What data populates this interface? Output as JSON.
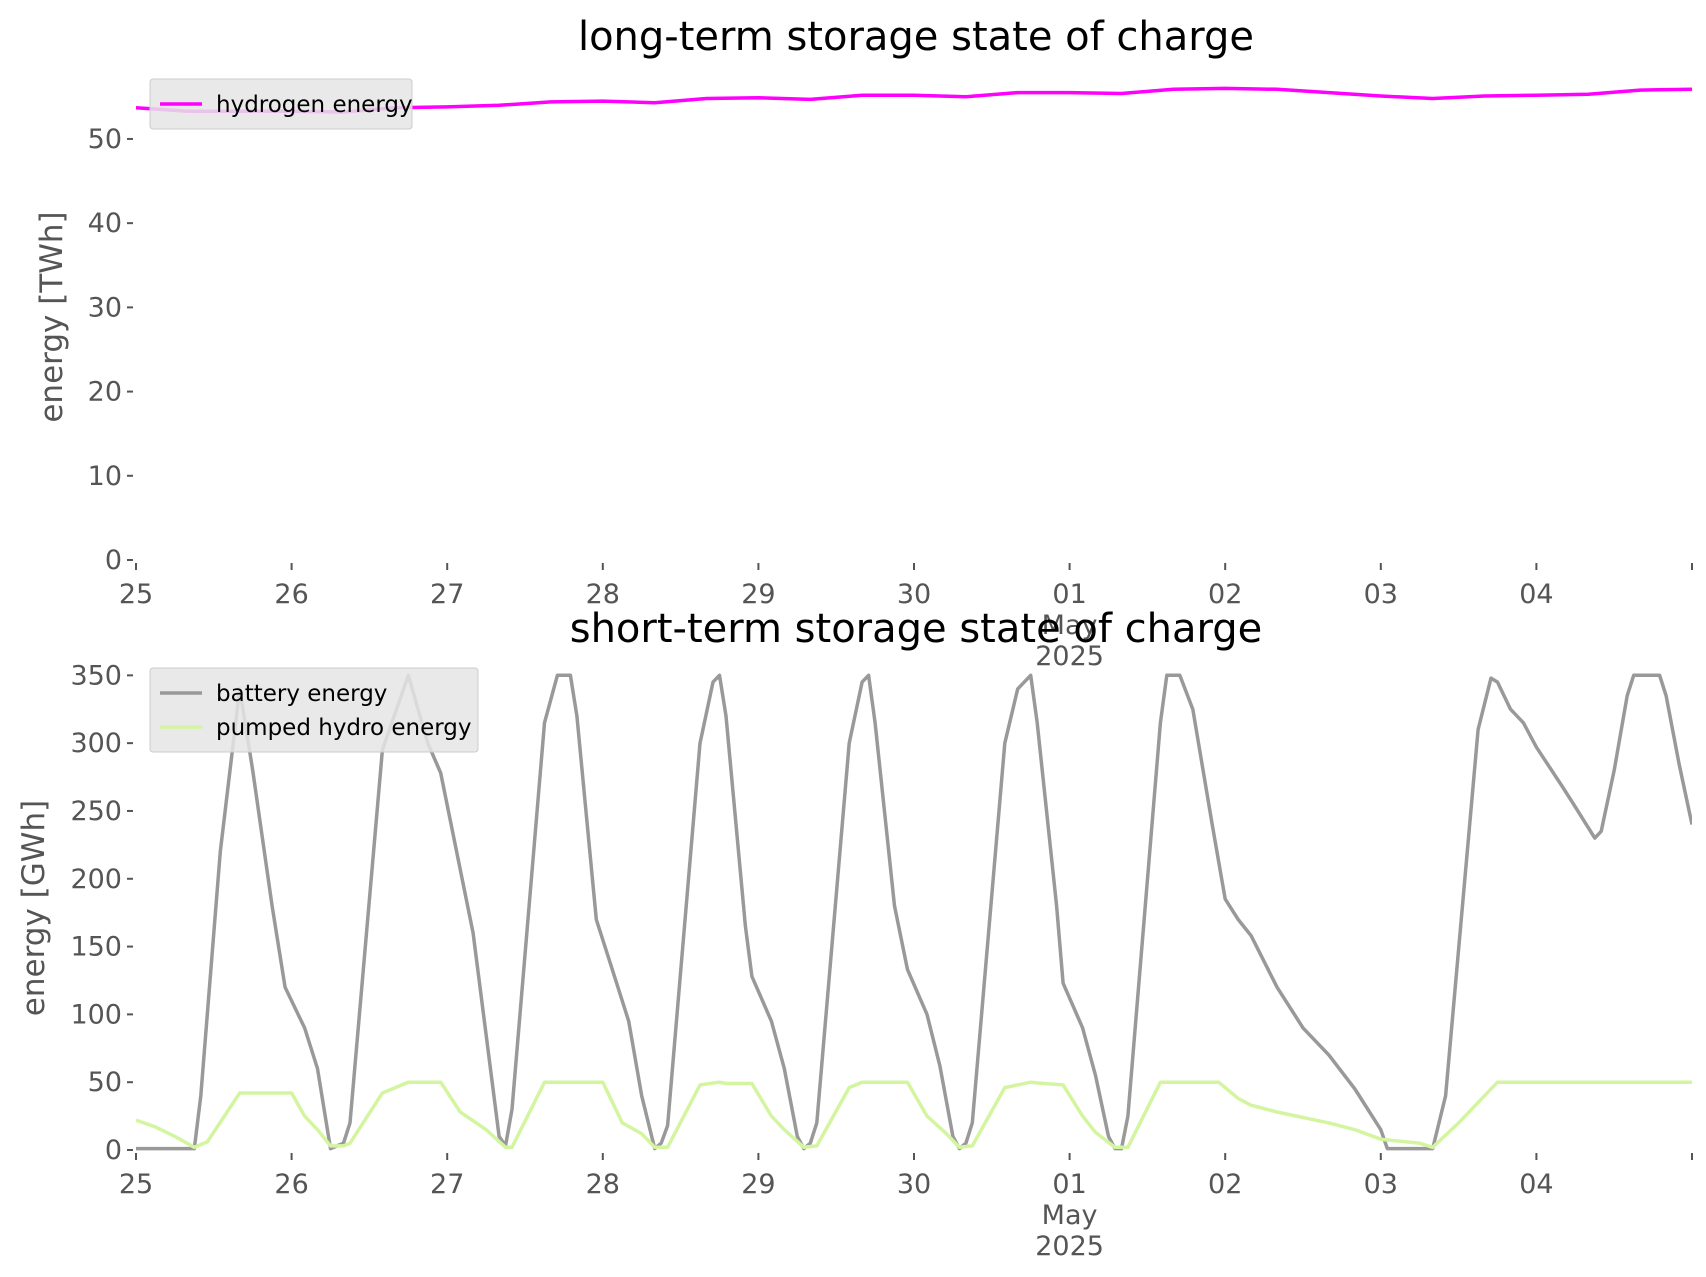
{
  "chart_data": [
    {
      "type": "line",
      "title": "long-term storage state of charge",
      "xlabel": "",
      "ylabel": "energy [TWh]",
      "ylim": [
        0,
        57
      ],
      "yticks": [
        0,
        10,
        20,
        30,
        40,
        50
      ],
      "xlim": [
        "2025-04-25",
        "2025-05-05"
      ],
      "xticks": [
        {
          "x": "2025-04-25",
          "label": "25"
        },
        {
          "x": "2025-04-26",
          "label": "26"
        },
        {
          "x": "2025-04-27",
          "label": "27"
        },
        {
          "x": "2025-04-28",
          "label": "28"
        },
        {
          "x": "2025-04-29",
          "label": "29"
        },
        {
          "x": "2025-04-30",
          "label": "30"
        },
        {
          "x": "2025-05-01",
          "label": "01\nMay\n2025"
        },
        {
          "x": "2025-05-02",
          "label": "02"
        },
        {
          "x": "2025-05-03",
          "label": "03"
        },
        {
          "x": "2025-05-04",
          "label": "04"
        }
      ],
      "grid": false,
      "legend": "top-left",
      "series": [
        {
          "name": "hydrogen energy",
          "color": "#ff00ff",
          "points": [
            [
              "2025-04-25 00:00",
              53.7
            ],
            [
              "2025-04-25 08:00",
              53.3
            ],
            [
              "2025-04-25 16:00",
              53.3
            ],
            [
              "2025-04-26 00:00",
              53.3
            ],
            [
              "2025-04-26 08:00",
              53.2
            ],
            [
              "2025-04-26 16:00",
              53.7
            ],
            [
              "2025-04-27 00:00",
              53.8
            ],
            [
              "2025-04-27 08:00",
              54.0
            ],
            [
              "2025-04-27 16:00",
              54.4
            ],
            [
              "2025-04-28 00:00",
              54.5
            ],
            [
              "2025-04-28 08:00",
              54.3
            ],
            [
              "2025-04-28 16:00",
              54.8
            ],
            [
              "2025-04-29 00:00",
              54.9
            ],
            [
              "2025-04-29 08:00",
              54.7
            ],
            [
              "2025-04-29 16:00",
              55.2
            ],
            [
              "2025-04-30 00:00",
              55.2
            ],
            [
              "2025-04-30 08:00",
              55.0
            ],
            [
              "2025-04-30 16:00",
              55.5
            ],
            [
              "2025-05-01 00:00",
              55.5
            ],
            [
              "2025-05-01 08:00",
              55.4
            ],
            [
              "2025-05-01 16:00",
              55.9
            ],
            [
              "2025-05-02 00:00",
              56.0
            ],
            [
              "2025-05-02 08:00",
              55.9
            ],
            [
              "2025-05-02 16:00",
              55.5
            ],
            [
              "2025-05-03 00:00",
              55.1
            ],
            [
              "2025-05-03 08:00",
              54.8
            ],
            [
              "2025-05-03 16:00",
              55.1
            ],
            [
              "2025-05-04 00:00",
              55.2
            ],
            [
              "2025-05-04 08:00",
              55.3
            ],
            [
              "2025-05-04 16:00",
              55.8
            ],
            [
              "2025-05-05 00:00",
              55.9
            ]
          ]
        }
      ]
    },
    {
      "type": "line",
      "title": "short-term storage state of charge",
      "xlabel": "",
      "ylabel": "energy [GWh]",
      "ylim": [
        0,
        365
      ],
      "yticks": [
        0,
        50,
        100,
        150,
        200,
        250,
        300,
        350
      ],
      "xlim": [
        "2025-04-25",
        "2025-05-05"
      ],
      "xticks": [
        {
          "x": "2025-04-25",
          "label": "25"
        },
        {
          "x": "2025-04-26",
          "label": "26"
        },
        {
          "x": "2025-04-27",
          "label": "27"
        },
        {
          "x": "2025-04-28",
          "label": "28"
        },
        {
          "x": "2025-04-29",
          "label": "29"
        },
        {
          "x": "2025-04-30",
          "label": "30"
        },
        {
          "x": "2025-05-01",
          "label": "01\nMay\n2025"
        },
        {
          "x": "2025-05-02",
          "label": "02"
        },
        {
          "x": "2025-05-03",
          "label": "03"
        },
        {
          "x": "2025-05-04",
          "label": "04"
        }
      ],
      "grid": false,
      "legend": "top-left",
      "series": [
        {
          "name": "battery energy",
          "color": "#999999",
          "points": [
            [
              "2025-04-25 00:00",
              1
            ],
            [
              "2025-04-25 09:00",
              1
            ],
            [
              "2025-04-25 10:00",
              40
            ],
            [
              "2025-04-25 13:00",
              220
            ],
            [
              "2025-04-25 16:00",
              340
            ],
            [
              "2025-04-25 18:00",
              280
            ],
            [
              "2025-04-25 21:00",
              180
            ],
            [
              "2025-04-25 23:00",
              120
            ],
            [
              "2025-04-26 02:00",
              90
            ],
            [
              "2025-04-26 04:00",
              60
            ],
            [
              "2025-04-26 06:00",
              1
            ],
            [
              "2025-04-26 08:00",
              5
            ],
            [
              "2025-04-26 09:00",
              20
            ],
            [
              "2025-04-26 14:00",
              295
            ],
            [
              "2025-04-26 18:00",
              350
            ],
            [
              "2025-04-26 21:00",
              300
            ],
            [
              "2025-04-26 23:00",
              278
            ],
            [
              "2025-04-27 04:00",
              160
            ],
            [
              "2025-04-27 06:00",
              85
            ],
            [
              "2025-04-27 08:00",
              10
            ],
            [
              "2025-04-27 09:00",
              3
            ],
            [
              "2025-04-27 10:00",
              30
            ],
            [
              "2025-04-27 15:00",
              315
            ],
            [
              "2025-04-27 17:00",
              350
            ],
            [
              "2025-04-27 19:00",
              350
            ],
            [
              "2025-04-27 20:00",
              320
            ],
            [
              "2025-04-27 23:00",
              170
            ],
            [
              "2025-04-28 02:00",
              125
            ],
            [
              "2025-04-28 04:00",
              95
            ],
            [
              "2025-04-28 06:00",
              40
            ],
            [
              "2025-04-28 08:00",
              1
            ],
            [
              "2025-04-28 09:00",
              5
            ],
            [
              "2025-04-28 10:00",
              18
            ],
            [
              "2025-04-28 15:00",
              300
            ],
            [
              "2025-04-28 17:00",
              345
            ],
            [
              "2025-04-28 18:00",
              350
            ],
            [
              "2025-04-28 19:00",
              320
            ],
            [
              "2025-04-28 22:00",
              165
            ],
            [
              "2025-04-28 23:00",
              128
            ],
            [
              "2025-04-29 02:00",
              95
            ],
            [
              "2025-04-29 04:00",
              60
            ],
            [
              "2025-04-29 06:00",
              10
            ],
            [
              "2025-04-29 07:00",
              1
            ],
            [
              "2025-04-29 08:00",
              5
            ],
            [
              "2025-04-29 09:00",
              20
            ],
            [
              "2025-04-29 14:00",
              300
            ],
            [
              "2025-04-29 16:00",
              345
            ],
            [
              "2025-04-29 17:00",
              350
            ],
            [
              "2025-04-29 18:00",
              315
            ],
            [
              "2025-04-29 21:00",
              180
            ],
            [
              "2025-04-29 23:00",
              133
            ],
            [
              "2025-04-30 02:00",
              100
            ],
            [
              "2025-04-30 04:00",
              62
            ],
            [
              "2025-04-30 06:00",
              10
            ],
            [
              "2025-04-30 07:00",
              1
            ],
            [
              "2025-04-30 08:00",
              5
            ],
            [
              "2025-04-30 09:00",
              20
            ],
            [
              "2025-04-30 14:00",
              300
            ],
            [
              "2025-04-30 16:00",
              340
            ],
            [
              "2025-04-30 18:00",
              350
            ],
            [
              "2025-04-30 19:00",
              315
            ],
            [
              "2025-04-30 22:00",
              180
            ],
            [
              "2025-04-30 23:00",
              123
            ],
            [
              "2025-05-01 02:00",
              90
            ],
            [
              "2025-05-01 04:00",
              55
            ],
            [
              "2025-05-01 06:00",
              10
            ],
            [
              "2025-05-01 07:00",
              1
            ],
            [
              "2025-05-01 08:00",
              1
            ],
            [
              "2025-05-01 09:00",
              25
            ],
            [
              "2025-05-01 14:00",
              315
            ],
            [
              "2025-05-01 15:00",
              350
            ],
            [
              "2025-05-01 17:00",
              350
            ],
            [
              "2025-05-01 19:00",
              325
            ],
            [
              "2025-05-01 22:00",
              240
            ],
            [
              "2025-05-02 00:00",
              185
            ],
            [
              "2025-05-02 02:00",
              170
            ],
            [
              "2025-05-02 04:00",
              158
            ],
            [
              "2025-05-02 08:00",
              120
            ],
            [
              "2025-05-02 12:00",
              90
            ],
            [
              "2025-05-02 16:00",
              70
            ],
            [
              "2025-05-02 20:00",
              45
            ],
            [
              "2025-05-03 00:00",
              15
            ],
            [
              "2025-05-03 01:00",
              1
            ],
            [
              "2025-05-03 08:00",
              1
            ],
            [
              "2025-05-03 10:00",
              40
            ],
            [
              "2025-05-03 15:00",
              310
            ],
            [
              "2025-05-03 17:00",
              348
            ],
            [
              "2025-05-03 18:00",
              345
            ],
            [
              "2025-05-03 20:00",
              325
            ],
            [
              "2025-05-03 22:00",
              315
            ],
            [
              "2025-05-04 00:00",
              297
            ],
            [
              "2025-05-04 04:00",
              268
            ],
            [
              "2025-05-04 06:00",
              253
            ],
            [
              "2025-05-04 09:00",
              230
            ],
            [
              "2025-05-04 10:00",
              235
            ],
            [
              "2025-05-04 12:00",
              280
            ],
            [
              "2025-05-04 14:00",
              335
            ],
            [
              "2025-05-04 15:00",
              350
            ],
            [
              "2025-05-04 19:00",
              350
            ],
            [
              "2025-05-04 20:00",
              335
            ],
            [
              "2025-05-04 22:00",
              285
            ],
            [
              "2025-05-05 00:00",
              240
            ]
          ]
        },
        {
          "name": "pumped hydro energy",
          "color": "#d4f5a0",
          "points": [
            [
              "2025-04-25 00:00",
              22
            ],
            [
              "2025-04-25 03:00",
              17
            ],
            [
              "2025-04-25 06:00",
              10
            ],
            [
              "2025-04-25 09:00",
              2
            ],
            [
              "2025-04-25 11:00",
              6
            ],
            [
              "2025-04-25 16:00",
              42
            ],
            [
              "2025-04-26 00:00",
              42
            ],
            [
              "2025-04-26 02:00",
              25
            ],
            [
              "2025-04-26 04:00",
              15
            ],
            [
              "2025-04-26 06:00",
              3
            ],
            [
              "2025-04-26 08:00",
              3
            ],
            [
              "2025-04-26 09:00",
              5
            ],
            [
              "2025-04-26 14:00",
              42
            ],
            [
              "2025-04-26 18:00",
              50
            ],
            [
              "2025-04-26 23:00",
              50
            ],
            [
              "2025-04-27 02:00",
              28
            ],
            [
              "2025-04-27 06:00",
              15
            ],
            [
              "2025-04-27 09:00",
              2
            ],
            [
              "2025-04-27 10:00",
              2
            ],
            [
              "2025-04-27 15:00",
              50
            ],
            [
              "2025-04-28 00:00",
              50
            ],
            [
              "2025-04-28 03:00",
              20
            ],
            [
              "2025-04-28 06:00",
              12
            ],
            [
              "2025-04-28 08:00",
              2
            ],
            [
              "2025-04-28 10:00",
              2
            ],
            [
              "2025-04-28 15:00",
              48
            ],
            [
              "2025-04-28 18:00",
              50
            ],
            [
              "2025-04-28 19:00",
              49
            ],
            [
              "2025-04-28 23:00",
              49
            ],
            [
              "2025-04-29 02:00",
              25
            ],
            [
              "2025-04-29 04:00",
              15
            ],
            [
              "2025-04-29 07:00",
              2
            ],
            [
              "2025-04-29 09:00",
              3
            ],
            [
              "2025-04-29 14:00",
              46
            ],
            [
              "2025-04-29 16:00",
              50
            ],
            [
              "2025-04-29 23:00",
              50
            ],
            [
              "2025-04-30 02:00",
              25
            ],
            [
              "2025-04-30 05:00",
              12
            ],
            [
              "2025-04-30 07:00",
              2
            ],
            [
              "2025-04-30 09:00",
              3
            ],
            [
              "2025-04-30 14:00",
              46
            ],
            [
              "2025-04-30 18:00",
              50
            ],
            [
              "2025-04-30 20:00",
              49
            ],
            [
              "2025-04-30 23:00",
              48
            ],
            [
              "2025-05-01 02:00",
              25
            ],
            [
              "2025-05-01 04:00",
              13
            ],
            [
              "2025-05-01 07:00",
              2
            ],
            [
              "2025-05-01 09:00",
              2
            ],
            [
              "2025-05-01 14:00",
              50
            ],
            [
              "2025-05-01 23:00",
              50
            ],
            [
              "2025-05-02 02:00",
              38
            ],
            [
              "2025-05-02 04:00",
              33
            ],
            [
              "2025-05-02 08:00",
              28
            ],
            [
              "2025-05-02 16:00",
              20
            ],
            [
              "2025-05-02 20:00",
              15
            ],
            [
              "2025-05-03 00:00",
              8
            ],
            [
              "2025-05-03 06:00",
              5
            ],
            [
              "2025-05-03 08:00",
              2
            ],
            [
              "2025-05-03 12:00",
              20
            ],
            [
              "2025-05-03 18:00",
              50
            ],
            [
              "2025-05-05 00:00",
              50
            ]
          ]
        }
      ]
    }
  ]
}
